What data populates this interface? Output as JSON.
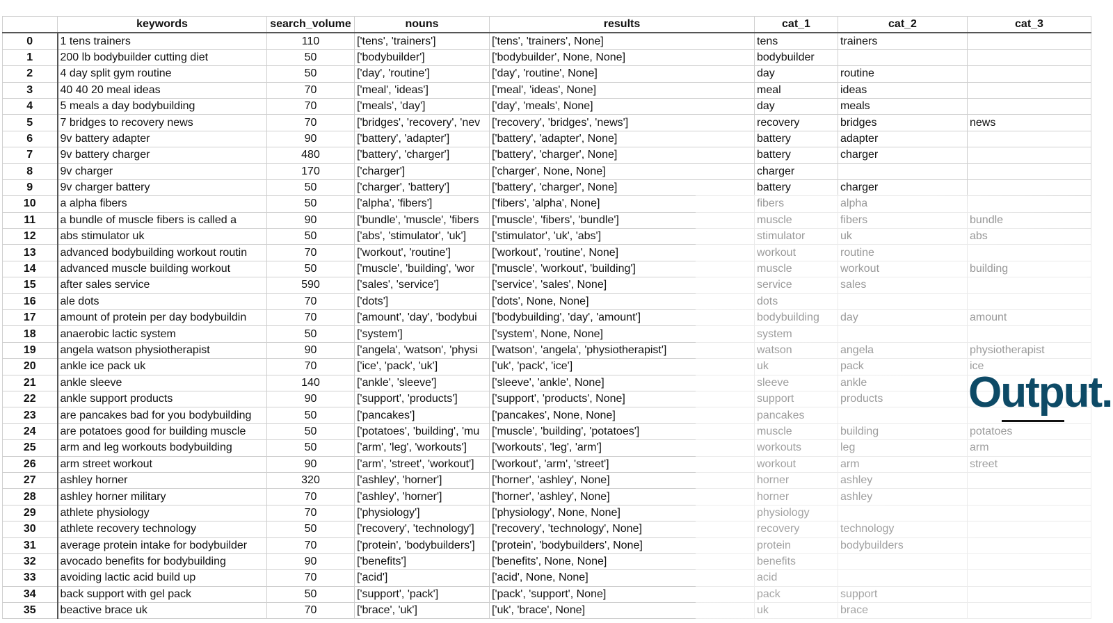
{
  "columns": [
    "",
    "keywords",
    "search_volume",
    "nouns",
    "results",
    "cat_1",
    "cat_2",
    "cat_3"
  ],
  "rows": [
    [
      "0",
      "1 tens trainers",
      "110",
      "['tens', 'trainers']",
      "['tens', 'trainers', None]",
      "tens",
      "trainers",
      ""
    ],
    [
      "1",
      "200 lb bodybuilder cutting diet",
      "50",
      "['bodybuilder']",
      "['bodybuilder', None, None]",
      "bodybuilder",
      "",
      ""
    ],
    [
      "2",
      "4 day split gym routine",
      "50",
      "['day', 'routine']",
      "['day', 'routine', None]",
      "day",
      "routine",
      ""
    ],
    [
      "3",
      "40 40 20 meal ideas",
      "70",
      "['meal', 'ideas']",
      "['meal', 'ideas', None]",
      "meal",
      "ideas",
      ""
    ],
    [
      "4",
      "5 meals a day bodybuilding",
      "70",
      "['meals', 'day']",
      "['day', 'meals', None]",
      "day",
      "meals",
      ""
    ],
    [
      "5",
      "7 bridges to recovery news",
      "70",
      "['bridges', 'recovery', 'nev",
      "['recovery', 'bridges', 'news']",
      "recovery",
      "bridges",
      "news"
    ],
    [
      "6",
      "9v battery adapter",
      "90",
      "['battery', 'adapter']",
      "['battery', 'adapter', None]",
      "battery",
      "adapter",
      ""
    ],
    [
      "7",
      "9v battery charger",
      "480",
      "['battery', 'charger']",
      "['battery', 'charger', None]",
      "battery",
      "charger",
      ""
    ],
    [
      "8",
      "9v charger",
      "170",
      "['charger']",
      "['charger', None, None]",
      "charger",
      "",
      ""
    ],
    [
      "9",
      "9v charger battery",
      "50",
      "['charger', 'battery']",
      "['battery', 'charger', None]",
      "battery",
      "charger",
      ""
    ],
    [
      "10",
      "a alpha fibers",
      "50",
      "['alpha', 'fibers']",
      "['fibers', 'alpha', None]",
      "fibers",
      "alpha",
      ""
    ],
    [
      "11",
      "a bundle of muscle fibers is called a",
      "90",
      "['bundle', 'muscle', 'fibers",
      "['muscle', 'fibers', 'bundle']",
      "muscle",
      "fibers",
      "bundle"
    ],
    [
      "12",
      "abs stimulator uk",
      "50",
      "['abs', 'stimulator', 'uk']",
      "['stimulator', 'uk', 'abs']",
      "stimulator",
      "uk",
      "abs"
    ],
    [
      "13",
      "advanced bodybuilding workout routin",
      "70",
      "['workout', 'routine']",
      "['workout', 'routine', None]",
      "workout",
      "routine",
      ""
    ],
    [
      "14",
      "advanced muscle building workout",
      "50",
      "['muscle', 'building', 'wor",
      "['muscle', 'workout', 'building']",
      "muscle",
      "workout",
      "building"
    ],
    [
      "15",
      "after sales service",
      "590",
      "['sales', 'service']",
      "['service', 'sales', None]",
      "service",
      "sales",
      ""
    ],
    [
      "16",
      "ale dots",
      "70",
      "['dots']",
      "['dots', None, None]",
      "dots",
      "",
      ""
    ],
    [
      "17",
      "amount of protein per day bodybuildin",
      "70",
      "['amount', 'day', 'bodybui",
      "['bodybuilding', 'day', 'amount']",
      "bodybuilding",
      "day",
      "amount"
    ],
    [
      "18",
      "anaerobic lactic system",
      "50",
      "['system']",
      "['system', None, None]",
      "system",
      "",
      ""
    ],
    [
      "19",
      "angela watson physiotherapist",
      "90",
      "['angela', 'watson', 'physi",
      "['watson', 'angela', 'physiotherapist']",
      "watson",
      "angela",
      "physiotherapist"
    ],
    [
      "20",
      "ankle ice pack uk",
      "70",
      "['ice', 'pack', 'uk']",
      "['uk', 'pack', 'ice']",
      "uk",
      "pack",
      "ice"
    ],
    [
      "21",
      "ankle sleeve",
      "140",
      "['ankle', 'sleeve']",
      "['sleeve', 'ankle', None]",
      "sleeve",
      "ankle",
      ""
    ],
    [
      "22",
      "ankle support products",
      "90",
      "['support', 'products']",
      "['support', 'products', None]",
      "support",
      "products",
      ""
    ],
    [
      "23",
      "are pancakes bad for you bodybuilding",
      "50",
      "['pancakes']",
      "['pancakes', None, None]",
      "pancakes",
      "",
      ""
    ],
    [
      "24",
      "are potatoes good for building muscle",
      "50",
      "['potatoes', 'building', 'mu",
      "['muscle', 'building', 'potatoes']",
      "muscle",
      "building",
      "potatoes"
    ],
    [
      "25",
      "arm and leg workouts bodybuilding",
      "50",
      "['arm', 'leg', 'workouts']",
      "['workouts', 'leg', 'arm']",
      "workouts",
      "leg",
      "arm"
    ],
    [
      "26",
      "arm street workout",
      "90",
      "['arm', 'street', 'workout']",
      "['workout', 'arm', 'street']",
      "workout",
      "arm",
      "street"
    ],
    [
      "27",
      "ashley horner",
      "320",
      "['ashley', 'horner']",
      "['horner', 'ashley', None]",
      "horner",
      "ashley",
      ""
    ],
    [
      "28",
      "ashley horner military",
      "70",
      "['ashley', 'horner']",
      "['horner', 'ashley', None]",
      "horner",
      "ashley",
      ""
    ],
    [
      "29",
      "athlete physiology",
      "70",
      "['physiology']",
      "['physiology', None, None]",
      "physiology",
      "",
      ""
    ],
    [
      "30",
      "athlete recovery technology",
      "50",
      "['recovery', 'technology']",
      "['recovery', 'technology', None]",
      "recovery",
      "technology",
      ""
    ],
    [
      "31",
      "average protein intake for bodybuilder",
      "70",
      "['protein', 'bodybuilders']",
      "['protein', 'bodybuilders', None]",
      "protein",
      "bodybuilders",
      ""
    ],
    [
      "32",
      "avocado benefits for bodybuilding",
      "90",
      "['benefits']",
      "['benefits', None, None]",
      "benefits",
      "",
      ""
    ],
    [
      "33",
      "avoiding lactic acid build up",
      "70",
      "['acid']",
      "['acid', None, None]",
      "acid",
      "",
      ""
    ],
    [
      "34",
      "back support with gel pack",
      "50",
      "['support', 'pack']",
      "['pack', 'support', None]",
      "pack",
      "support",
      ""
    ],
    [
      "35",
      "beactive brace uk",
      "70",
      "['brace', 'uk']",
      "['uk', 'brace', None]",
      "uk",
      "brace",
      ""
    ]
  ],
  "overlay": {
    "title": "Output.",
    "title_color": "#0d4a66"
  }
}
